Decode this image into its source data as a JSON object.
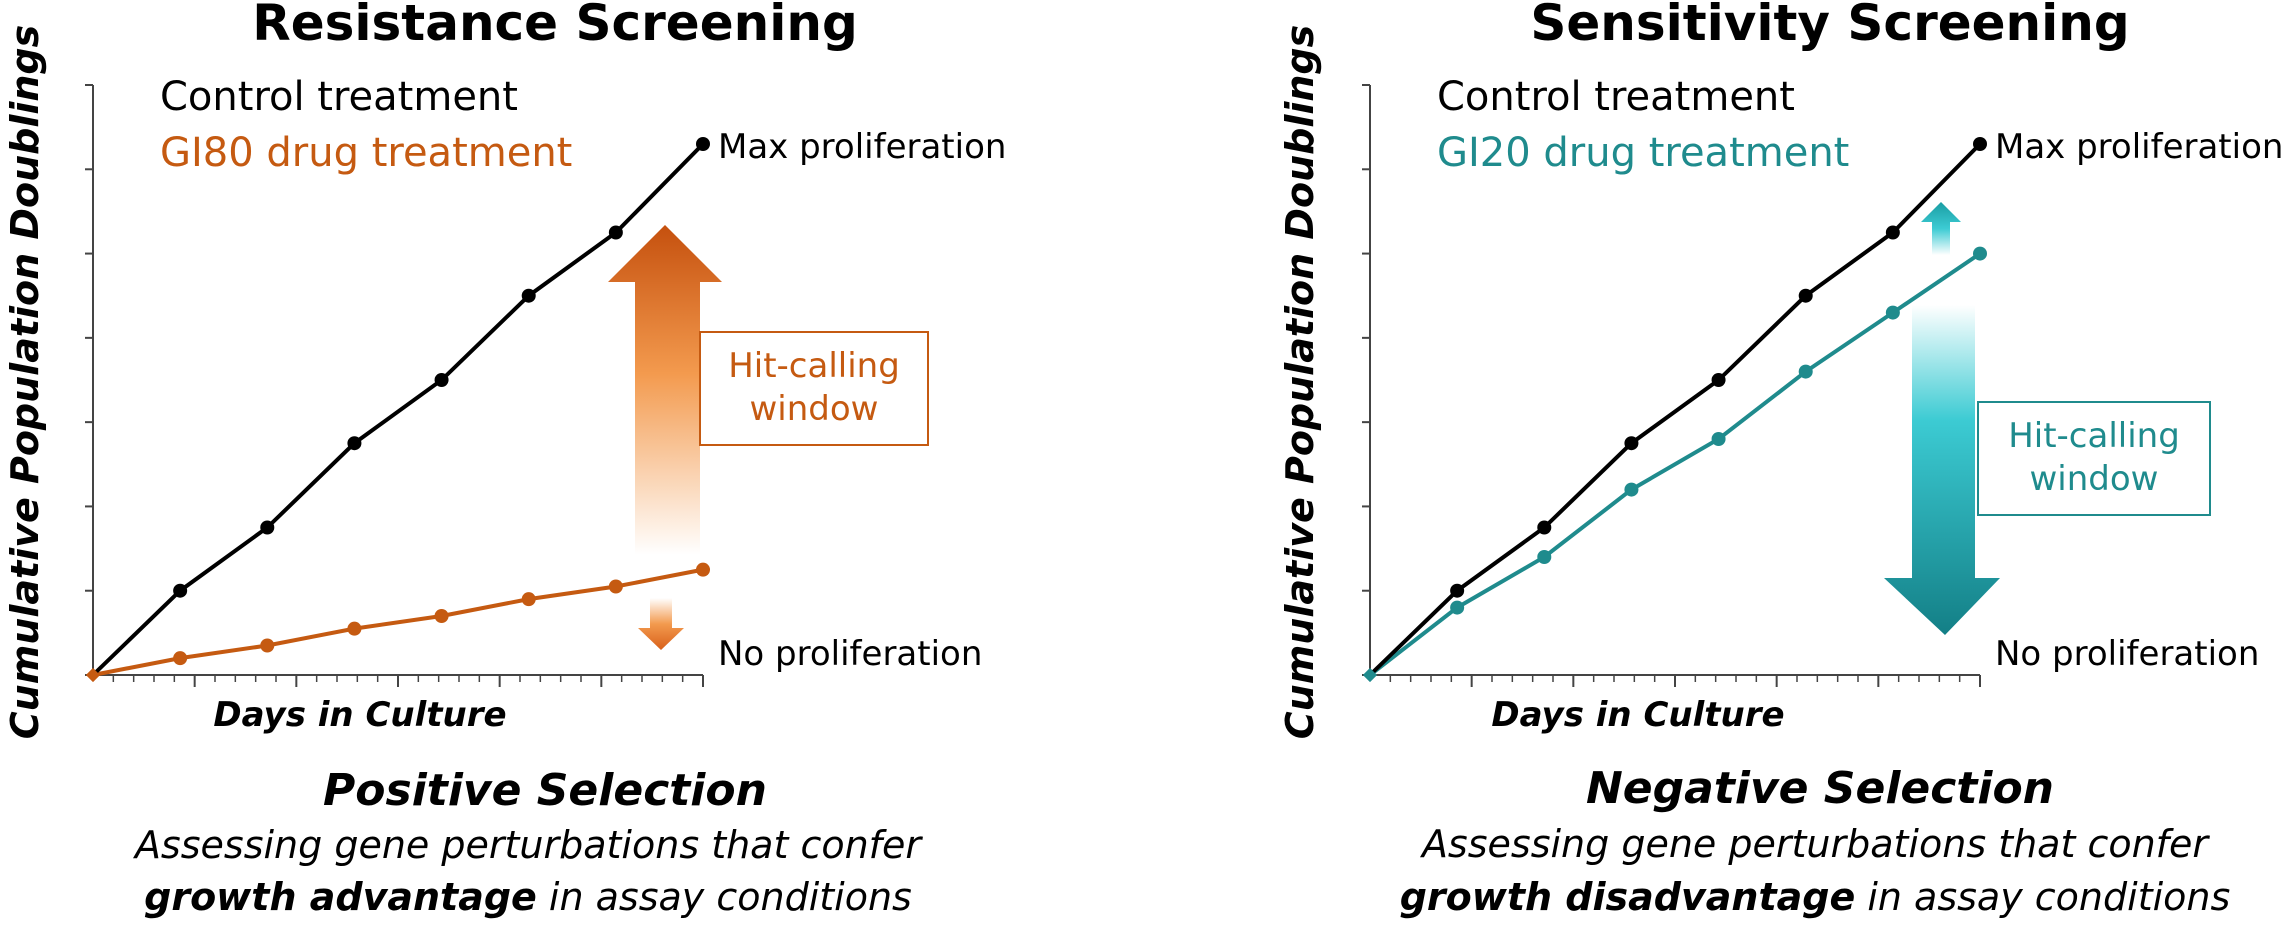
{
  "chart_data": [
    {
      "type": "line",
      "title": "Resistance Screening",
      "xlabel": "Days in Culture",
      "ylabel": "Cumulative Population Doublings",
      "x": [
        0,
        1,
        2,
        3,
        4,
        5,
        6,
        7
      ],
      "series": [
        {
          "name": "Control treatment",
          "values": [
            0,
            1,
            1.75,
            2.75,
            3.5,
            4.5,
            5.25,
            6.3
          ],
          "color": "#000000"
        },
        {
          "name": "GI80 drug treatment",
          "values": [
            0,
            0.2,
            0.35,
            0.55,
            0.7,
            0.9,
            1.05,
            1.25
          ],
          "color": "#C55A11"
        }
      ],
      "ylim": [
        0,
        7
      ],
      "annotations": {
        "max_label": "Max proliferation",
        "min_label": "No proliferation",
        "window_line1": "Hit-calling",
        "window_line2": "window"
      },
      "selection_title": "Positive Selection",
      "desc_line1": "Assessing gene perturbations that confer",
      "desc_bold": "growth advantage",
      "desc_tail": " in assay conditions",
      "accent": "#C55A11"
    },
    {
      "type": "line",
      "title": "Sensitivity Screening",
      "xlabel": "Days in Culture",
      "ylabel": "Cumulative Population Doublings",
      "x": [
        0,
        1,
        2,
        3,
        4,
        5,
        6,
        7
      ],
      "series": [
        {
          "name": "Control treatment",
          "values": [
            0,
            1,
            1.75,
            2.75,
            3.5,
            4.5,
            5.25,
            6.3
          ],
          "color": "#000000"
        },
        {
          "name": "GI20 drug treatment",
          "values": [
            0,
            0.8,
            1.4,
            2.2,
            2.8,
            3.6,
            4.3,
            5.0
          ],
          "color": "#1F8B8D"
        }
      ],
      "ylim": [
        0,
        7
      ],
      "annotations": {
        "max_label": "Max proliferation",
        "min_label": "No proliferation",
        "window_line1": "Hit-calling",
        "window_line2": "window"
      },
      "selection_title": "Negative Selection",
      "desc_line1": "Assessing gene perturbations that confer",
      "desc_bold": "growth disadvantage",
      "desc_tail": " in assay conditions",
      "accent": "#1F8B8D"
    }
  ]
}
